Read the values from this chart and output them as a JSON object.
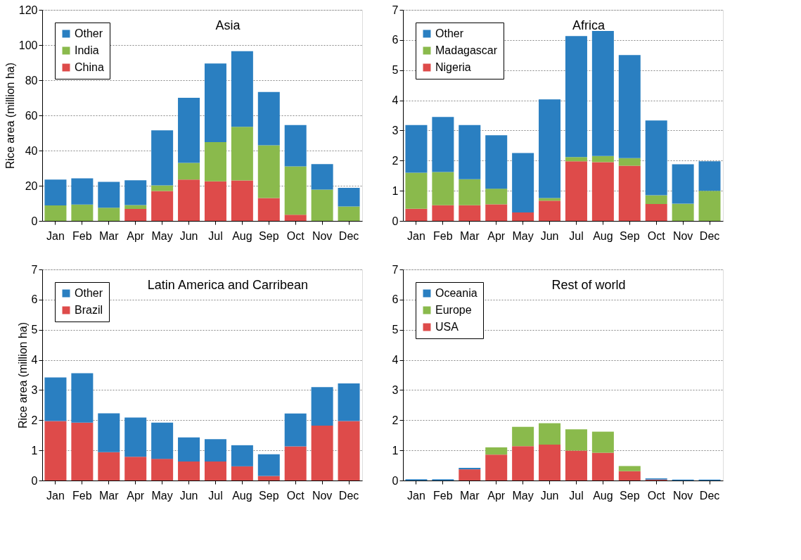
{
  "chart_data": [
    {
      "type": "bar",
      "title": "Asia",
      "ylabel": "Rice area (million ha)",
      "stacked": true,
      "grid": "y",
      "legend": "top left",
      "categories": [
        "Jan",
        "Feb",
        "Mar",
        "Apr",
        "May",
        "Jun",
        "Jul",
        "Aug",
        "Sep",
        "Oct",
        "Nov",
        "Dec"
      ],
      "ylim": [
        0,
        120
      ],
      "yticks": [
        0,
        20,
        40,
        60,
        80,
        100,
        120
      ],
      "series": [
        {
          "name": "China",
          "color": "#de4b4a",
          "values": [
            0,
            0,
            0,
            6.8,
            17,
            23.5,
            22.5,
            23,
            13,
            3.5,
            0,
            0
          ]
        },
        {
          "name": "India",
          "color": "#8aba4c",
          "values": [
            8.8,
            9.3,
            7.5,
            2.2,
            3.2,
            9.5,
            22.3,
            30.5,
            30,
            27.5,
            17.8,
            8.2
          ]
        },
        {
          "name": "Other",
          "color": "#2a7fc1",
          "values": [
            14.7,
            14.9,
            14.7,
            14.1,
            31.3,
            37,
            44.7,
            43,
            30.3,
            23.5,
            14.5,
            10.6
          ]
        }
      ]
    },
    {
      "type": "bar",
      "title": "Africa",
      "stacked": true,
      "grid": "y",
      "legend": "top left",
      "categories": [
        "Jan",
        "Feb",
        "Mar",
        "Apr",
        "May",
        "Jun",
        "Jul",
        "Aug",
        "Sep",
        "Oct",
        "Nov",
        "Dec"
      ],
      "ylim": [
        0,
        7
      ],
      "yticks": [
        0,
        1,
        2,
        3,
        4,
        5,
        6,
        7
      ],
      "series": [
        {
          "name": "Nigeria",
          "color": "#de4b4a",
          "values": [
            0.4,
            0.52,
            0.52,
            0.55,
            0.28,
            0.67,
            1.98,
            1.95,
            1.83,
            0.56,
            0,
            0
          ]
        },
        {
          "name": "Madagascar",
          "color": "#8aba4c",
          "values": [
            1.2,
            1.1,
            0.86,
            0.52,
            0,
            0.09,
            0.14,
            0.2,
            0.25,
            0.29,
            0.57,
            1.0
          ]
        },
        {
          "name": "Other",
          "color": "#2a7fc1",
          "values": [
            1.58,
            1.83,
            1.8,
            1.77,
            1.97,
            3.27,
            4.01,
            4.15,
            3.42,
            2.48,
            1.31,
            0.98
          ]
        }
      ]
    },
    {
      "type": "bar",
      "title": "Latin America and Carribean",
      "ylabel": "Rice area (million ha)",
      "stacked": true,
      "grid": "y",
      "legend": "top left",
      "categories": [
        "Jan",
        "Feb",
        "Mar",
        "Apr",
        "May",
        "Jun",
        "Jul",
        "Aug",
        "Sep",
        "Oct",
        "Nov",
        "Dec"
      ],
      "ylim": [
        0,
        7
      ],
      "yticks": [
        0,
        1,
        2,
        3,
        4,
        5,
        6,
        7
      ],
      "series": [
        {
          "name": "Brazil",
          "color": "#de4b4a",
          "values": [
            1.97,
            1.92,
            0.94,
            0.79,
            0.72,
            0.63,
            0.63,
            0.47,
            0.15,
            1.13,
            1.82,
            1.97
          ]
        },
        {
          "name": "Other",
          "color": "#2a7fc1",
          "values": [
            1.45,
            1.64,
            1.29,
            1.3,
            1.2,
            0.8,
            0.74,
            0.7,
            0.72,
            1.09,
            1.28,
            1.25
          ]
        }
      ]
    },
    {
      "type": "bar",
      "title": "Rest of world",
      "stacked": true,
      "grid": "y",
      "legend": "top left",
      "categories": [
        "Jan",
        "Feb",
        "Mar",
        "Apr",
        "May",
        "Jun",
        "Jul",
        "Aug",
        "Sep",
        "Oct",
        "Nov",
        "Dec"
      ],
      "ylim": [
        0,
        7
      ],
      "yticks": [
        0,
        1,
        2,
        3,
        4,
        5,
        6,
        7
      ],
      "series": [
        {
          "name": "USA",
          "color": "#de4b4a",
          "values": [
            0,
            0,
            0.37,
            0.86,
            1.14,
            1.19,
            0.99,
            0.92,
            0.31,
            0.03,
            0,
            0
          ]
        },
        {
          "name": "Europe",
          "color": "#8aba4c",
          "values": [
            0,
            0,
            0,
            0.24,
            0.64,
            0.71,
            0.71,
            0.7,
            0.17,
            0,
            0,
            0
          ]
        },
        {
          "name": "Oceania",
          "color": "#2a7fc1",
          "values": [
            0.04,
            0.04,
            0.05,
            0,
            0,
            0,
            0,
            0,
            0,
            0.04,
            0.03,
            0.03
          ]
        }
      ]
    }
  ]
}
